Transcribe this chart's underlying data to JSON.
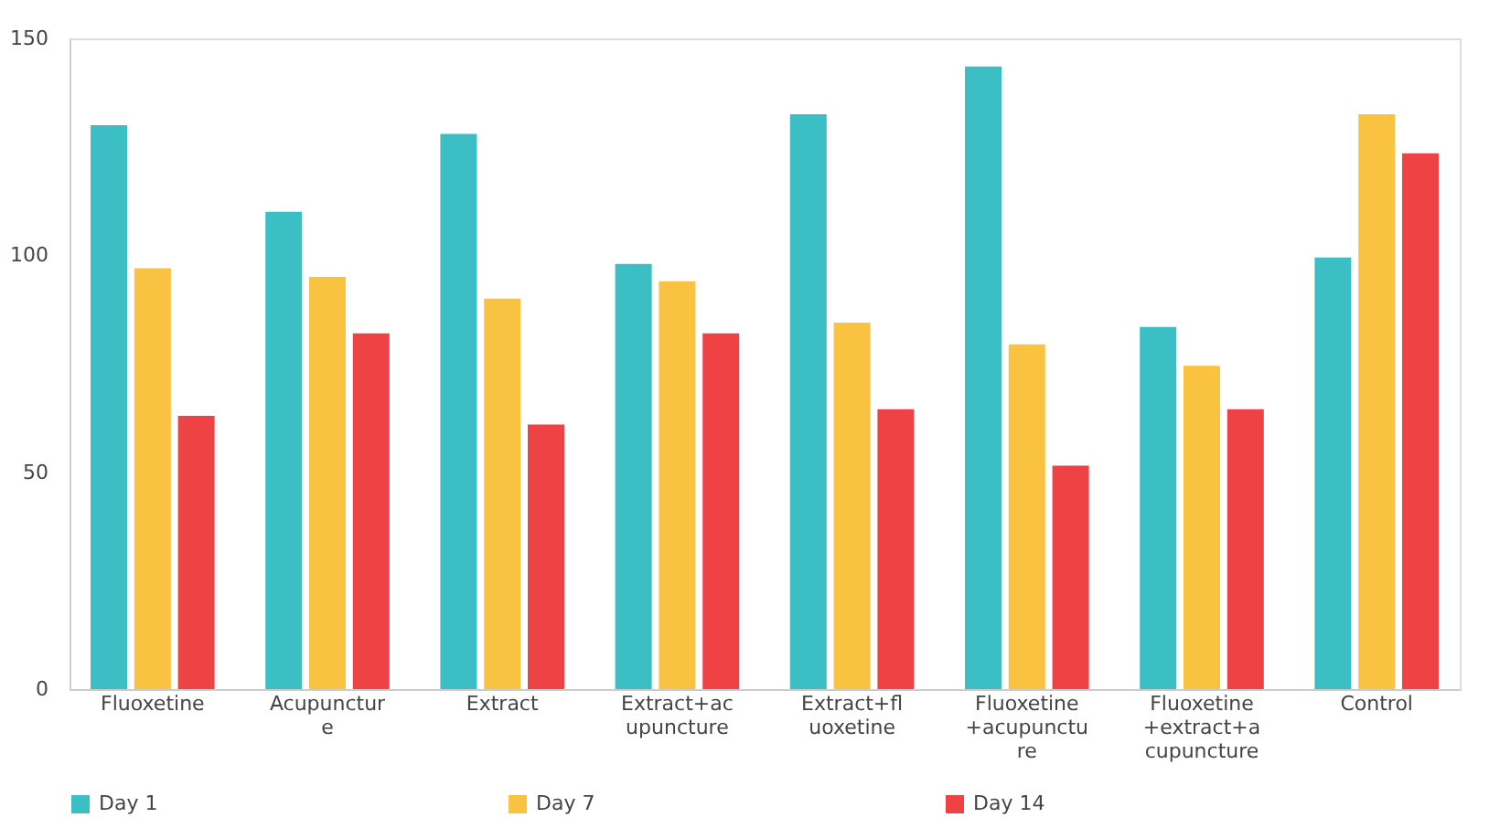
{
  "chart_data": {
    "type": "bar",
    "categories": [
      "Fluoxetine",
      "Acupuncture",
      "Extract",
      "Extract+acupuncture",
      "Extract+fluoxetine",
      "Fluoxetine+acupuncture",
      "Fluoxetine+extract+acupuncture",
      "Control"
    ],
    "series": [
      {
        "name": "Day 1",
        "color": "#3bbfc4",
        "values": [
          130,
          110,
          128,
          98,
          132.5,
          143.5,
          83.5,
          99.5
        ]
      },
      {
        "name": "Day 7",
        "color": "#f9c240",
        "values": [
          97,
          95,
          90,
          94,
          84.5,
          79.5,
          74.5,
          132.5
        ]
      },
      {
        "name": "Day 14",
        "color": "#ef4244",
        "values": [
          63,
          82,
          61,
          82,
          64.5,
          51.5,
          64.5,
          123.5
        ]
      }
    ],
    "ylim": [
      0,
      150
    ],
    "yticks": [
      0,
      50,
      100,
      150
    ],
    "grid": false,
    "legend": "bottom"
  }
}
